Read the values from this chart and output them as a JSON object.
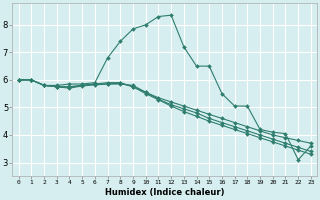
{
  "xlabel": "Humidex (Indice chaleur)",
  "ylabel": "",
  "color": "#2e7d6e",
  "background_color": "#d6eef0",
  "grid_color": "#ffffff",
  "xlim": [
    -0.5,
    23.5
  ],
  "ylim": [
    2.5,
    8.8
  ],
  "xticks": [
    0,
    1,
    2,
    3,
    4,
    5,
    6,
    7,
    8,
    9,
    10,
    11,
    12,
    13,
    14,
    15,
    16,
    17,
    18,
    19,
    20,
    21,
    22,
    23
  ],
  "yticks": [
    3,
    4,
    5,
    6,
    7,
    8
  ],
  "line1_x": [
    0,
    1,
    2,
    3,
    4,
    5,
    6,
    7,
    8,
    9,
    10,
    11,
    12,
    13,
    14,
    15,
    16,
    17,
    18,
    19,
    20,
    21,
    22,
    23
  ],
  "line1_y": [
    6.0,
    6.0,
    5.8,
    5.8,
    5.85,
    5.85,
    5.9,
    6.8,
    7.4,
    7.85,
    8.0,
    8.3,
    8.35,
    7.2,
    6.5,
    6.5,
    5.5,
    5.05,
    5.05,
    4.2,
    4.1,
    4.05,
    3.1,
    3.6
  ],
  "line2_x": [
    0,
    1,
    2,
    3,
    4,
    5,
    6,
    7,
    8,
    9,
    10,
    11,
    12,
    13,
    14,
    15,
    16,
    17,
    18,
    19,
    20,
    21,
    22,
    23
  ],
  "line2_y": [
    6.0,
    6.0,
    5.8,
    5.75,
    5.75,
    5.8,
    5.85,
    5.85,
    5.85,
    5.8,
    5.55,
    5.35,
    5.2,
    5.05,
    4.9,
    4.75,
    4.6,
    4.45,
    4.3,
    4.15,
    4.0,
    3.9,
    3.8,
    3.7
  ],
  "line3_x": [
    0,
    1,
    2,
    3,
    4,
    5,
    6,
    7,
    8,
    9,
    10,
    11,
    12,
    13,
    14,
    15,
    16,
    17,
    18,
    19,
    20,
    21,
    22,
    23
  ],
  "line3_y": [
    6.0,
    6.0,
    5.8,
    5.75,
    5.75,
    5.8,
    5.85,
    5.9,
    5.9,
    5.75,
    5.55,
    5.3,
    5.1,
    4.95,
    4.8,
    4.6,
    4.45,
    4.3,
    4.15,
    4.0,
    3.85,
    3.7,
    3.55,
    3.4
  ],
  "line4_x": [
    0,
    1,
    2,
    3,
    4,
    5,
    6,
    7,
    8,
    9,
    10,
    11,
    12,
    13,
    14,
    15,
    16,
    17,
    18,
    19,
    20,
    21,
    22,
    23
  ],
  "line4_y": [
    6.0,
    6.0,
    5.8,
    5.75,
    5.7,
    5.78,
    5.82,
    5.85,
    5.88,
    5.75,
    5.5,
    5.28,
    5.05,
    4.85,
    4.68,
    4.5,
    4.35,
    4.2,
    4.05,
    3.9,
    3.75,
    3.6,
    3.45,
    3.3
  ],
  "xlabel_fontsize": 6,
  "tick_fontsize_x": 4.5,
  "tick_fontsize_y": 6
}
